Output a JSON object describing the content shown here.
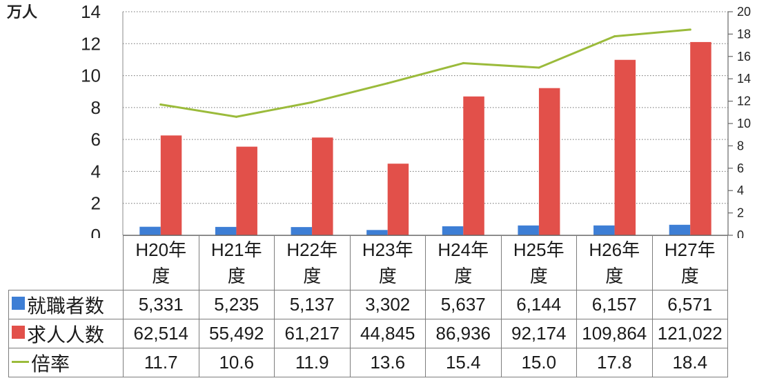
{
  "chart_data": {
    "type": "bar",
    "ylabel": "万人",
    "categories": [
      "H20年度",
      "H21年度",
      "H22年度",
      "H23年度",
      "H24年度",
      "H25年度",
      "H26年度",
      "H27年度"
    ],
    "y_left": {
      "ylim": [
        0,
        14
      ],
      "ticks": [
        0,
        2,
        4,
        6,
        8,
        10,
        12,
        14
      ]
    },
    "y_right": {
      "ylim": [
        0,
        20
      ],
      "ticks": [
        0,
        2,
        4,
        6,
        8,
        10,
        12,
        14,
        16,
        18,
        20
      ]
    },
    "grid": true,
    "legend": "bottom data table",
    "series": [
      {
        "name": "就職者数",
        "type": "bar",
        "axis": "left",
        "color": "#3d7ed5",
        "values": [
          0.5331,
          0.5235,
          0.5137,
          0.3302,
          0.5637,
          0.6144,
          0.6157,
          0.6571
        ],
        "table_values": [
          "5,331",
          "5,235",
          "5,137",
          "3,302",
          "5,637",
          "6,144",
          "6,157",
          "6,571"
        ]
      },
      {
        "name": "求人人数",
        "type": "bar",
        "axis": "left",
        "color": "#e2504a",
        "values": [
          6.2514,
          5.5492,
          6.1217,
          4.4845,
          8.6936,
          9.2174,
          10.9864,
          12.1022
        ],
        "table_values": [
          "62,514",
          "55,492",
          "61,217",
          "44,845",
          "86,936",
          "92,174",
          "109,864",
          "121,022"
        ]
      },
      {
        "name": "倍率",
        "type": "line",
        "axis": "right",
        "color": "#9bbb3b",
        "values": [
          11.7,
          10.6,
          11.9,
          13.6,
          15.4,
          15.0,
          17.8,
          18.4
        ],
        "table_values": [
          "11.7",
          "10.6",
          "11.9",
          "13.6",
          "15.4",
          "15.0",
          "17.8",
          "18.4"
        ]
      }
    ]
  }
}
